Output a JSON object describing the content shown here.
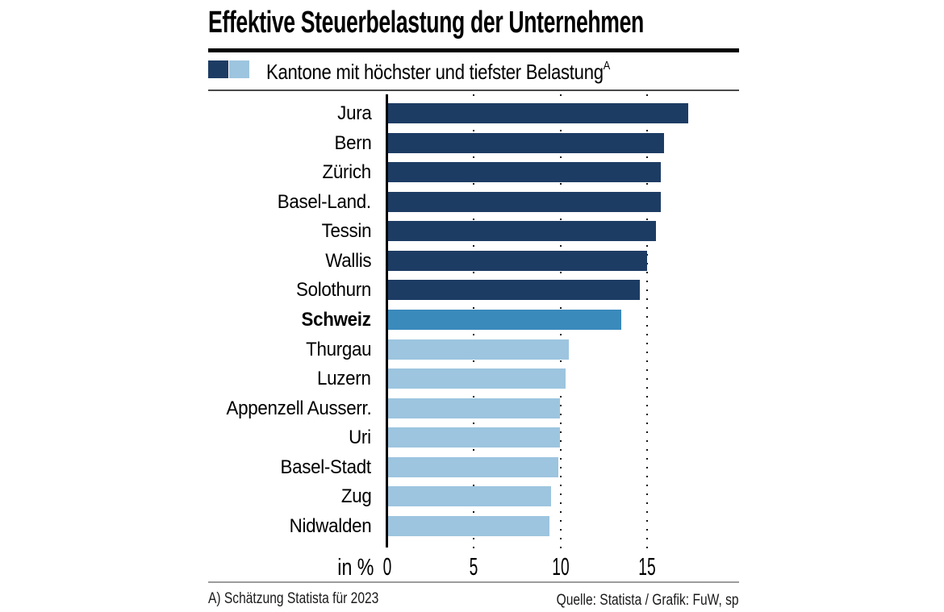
{
  "title": "Effektive Steuerbelastung der Unternehmen",
  "legend": {
    "label": "Kantone mit höchster und tiefster Belastung",
    "footnote_marker": "A",
    "swatches": [
      {
        "name": "hoechste-belastung",
        "color": "#1d3c64"
      },
      {
        "name": "tiefste-belastung",
        "color": "#9dc5df"
      }
    ]
  },
  "axis": {
    "unit_label": "in %"
  },
  "footnote": "A) Schätzung Statista für 2023",
  "source": "Quelle: Statista / Grafik: FuW, sp",
  "chart_data": {
    "type": "bar",
    "orientation": "horizontal",
    "title": "Effektive Steuerbelastung der Unternehmen",
    "subtitle": "Kantone mit höchster und tiefster Belastung (A)",
    "xlabel": "in %",
    "xlim": [
      0,
      17.6
    ],
    "xticks": [
      0,
      5,
      10,
      15
    ],
    "grid": "dotted vertical gridlines at ticks, behind bars",
    "legend_position": "top",
    "categories": [
      "Jura",
      "Bern",
      "Zürich",
      "Basel-Land.",
      "Tessin",
      "Wallis",
      "Solothurn",
      "Schweiz",
      "Thurgau",
      "Luzern",
      "Appenzell Ausserr.",
      "Uri",
      "Basel-Stadt",
      "Zug",
      "Nidwalden"
    ],
    "values": [
      17.3,
      15.9,
      15.7,
      15.7,
      15.4,
      14.9,
      14.5,
      13.4,
      10.4,
      10.2,
      9.9,
      9.9,
      9.8,
      9.4,
      9.3
    ],
    "groups": [
      "high",
      "high",
      "high",
      "high",
      "high",
      "high",
      "high",
      "average",
      "low",
      "low",
      "low",
      "low",
      "low",
      "low",
      "low"
    ],
    "colors": {
      "high": "#1d3c64",
      "average": "#3a8abc",
      "low": "#9dc5df"
    },
    "emphasized_category": "Schweiz"
  }
}
